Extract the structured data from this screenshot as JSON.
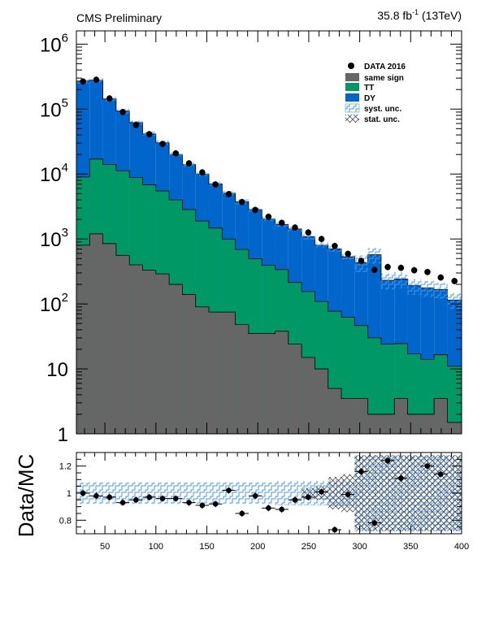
{
  "header": {
    "left": "CMS Preliminary",
    "lumi_value": "35.8 fb",
    "lumi_sup": "-1",
    "lumi_energy": " (13TeV)"
  },
  "colors": {
    "same_sign": "#666666",
    "tt": "#009966",
    "dy": "#0066cc",
    "syst": "#66aaff",
    "stat": "#404040",
    "data": "#000000"
  },
  "chart_data": [
    {
      "type": "bar",
      "stacked": true,
      "ylog": true,
      "ylim": [
        1,
        1600000
      ],
      "xlim": [
        22,
        400
      ],
      "y_ticklabels": [
        {
          "v": 1,
          "m": "1",
          "e": ""
        },
        {
          "v": 10,
          "m": "10",
          "e": ""
        },
        {
          "v": 100,
          "m": "10",
          "e": "2"
        },
        {
          "v": 1000,
          "m": "10",
          "e": "3"
        },
        {
          "v": 10000,
          "m": "10",
          "e": "4"
        },
        {
          "v": 100000,
          "m": "10",
          "e": "5"
        },
        {
          "v": 1000000,
          "m": "10",
          "e": "6"
        }
      ],
      "bin_edges": [
        22,
        35,
        48,
        61,
        74,
        87,
        100,
        113,
        126,
        139,
        152,
        165,
        178,
        191,
        204,
        217,
        230,
        243,
        256,
        269,
        282,
        295,
        308,
        321,
        334,
        347,
        360,
        373,
        386,
        400
      ],
      "series": [
        {
          "name": "same sign",
          "key": "same_sign",
          "values": [
            800,
            1200,
            850,
            560,
            400,
            330,
            290,
            200,
            140,
            90,
            75,
            75,
            48,
            35,
            35,
            38,
            24,
            15,
            10,
            5,
            3.5,
            3.5,
            2,
            2,
            3.5,
            2,
            2,
            3.5,
            1.5
          ]
        },
        {
          "name": "TT",
          "key": "tt",
          "values": [
            8200,
            15800,
            13200,
            10700,
            8400,
            6500,
            5200,
            3800,
            2700,
            1800,
            1400,
            920,
            640,
            460,
            360,
            300,
            190,
            140,
            99,
            72,
            59,
            43,
            28,
            22,
            21,
            15,
            12,
            13,
            9.5
          ]
        },
        {
          "name": "DY",
          "key": "dy",
          "values": [
            261000,
            262000,
            129000,
            82000,
            53000,
            34500,
            24800,
            16000,
            11100,
            8100,
            5600,
            4100,
            3060,
            2340,
            1640,
            1330,
            1210,
            930,
            696,
            628,
            470,
            387,
            542,
            207,
            218,
            174,
            163,
            150,
            104
          ]
        }
      ],
      "data": {
        "name": "DATA 2016",
        "x": [
          28.5,
          41.5,
          54.5,
          67.5,
          80.5,
          93.5,
          106.5,
          119.5,
          132.5,
          145.5,
          158.5,
          171.5,
          184.5,
          197.5,
          210.5,
          223.5,
          236.5,
          249.5,
          262.5,
          275.5,
          288.5,
          301.5,
          314.5,
          327.5,
          340.5,
          353.5,
          366.5,
          379.5,
          393
        ],
        "y": [
          266000,
          283000,
          146000,
          90000,
          57000,
          41000,
          29000,
          20800,
          14600,
          10600,
          6900,
          4900,
          3700,
          2800,
          2200,
          1770,
          1500,
          1260,
          1000,
          780,
          590,
          460,
          335,
          370,
          360,
          330,
          310,
          255,
          225
        ]
      },
      "legend": [
        {
          "label": "DATA 2016",
          "kind": "marker"
        },
        {
          "label": "same sign",
          "kind": "fill",
          "key": "same_sign"
        },
        {
          "label": "TT",
          "kind": "fill",
          "key": "tt"
        },
        {
          "label": "DY",
          "kind": "fill",
          "key": "dy"
        },
        {
          "label": "syst. unc.",
          "kind": "syst"
        },
        {
          "label": "stat. unc.",
          "kind": "stat"
        }
      ],
      "legend_position": "top-right"
    },
    {
      "type": "scatter",
      "ylabel": "Data/MC",
      "ylim": [
        0.7,
        1.3
      ],
      "xlim": [
        22,
        400
      ],
      "y_ticks": [
        0.8,
        1,
        1.2
      ],
      "y_ticklabels": [
        "0.8",
        "1",
        "1.2"
      ],
      "x_ticks": [
        50,
        100,
        150,
        200,
        250,
        300,
        350,
        400
      ],
      "x_ticklabels": [
        "50",
        "100",
        "150",
        "200",
        "250",
        "300",
        "350",
        "400"
      ],
      "ratio": {
        "x": [
          28.5,
          41.5,
          54.5,
          67.5,
          80.5,
          93.5,
          106.5,
          119.5,
          132.5,
          145.5,
          158.5,
          171.5,
          184.5,
          197.5,
          210.5,
          223.5,
          236.5,
          249.5,
          262.5,
          275.5,
          288.5,
          301.5,
          314.5,
          327.5,
          340.5,
          353.5,
          366.5,
          379.5,
          393
        ],
        "y": [
          1.0,
          0.98,
          0.97,
          0.93,
          0.95,
          0.97,
          0.96,
          0.96,
          0.93,
          0.91,
          0.92,
          1.02,
          0.85,
          0.98,
          0.89,
          0.88,
          0.95,
          0.97,
          1.01,
          0.73,
          0.99,
          1.16,
          0.78,
          1.24,
          1.11,
          1.3,
          1.2,
          1.14,
          1.3
        ]
      },
      "syst_band_halfwidth": [
        0.08,
        0.08,
        0.08,
        0.08,
        0.08,
        0.08,
        0.08,
        0.08,
        0.08,
        0.08,
        0.08,
        0.08,
        0.08,
        0.08,
        0.08,
        0.09,
        0.09,
        0.09,
        0.09,
        0.1,
        0.1,
        0.28,
        0.28,
        0.28,
        0.28,
        0.28,
        0.28,
        0.28,
        0.28
      ],
      "stat_band_halfwidth": [
        0.005,
        0.005,
        0.005,
        0.005,
        0.005,
        0.006,
        0.006,
        0.007,
        0.008,
        0.01,
        0.012,
        0.014,
        0.016,
        0.02,
        0.022,
        0.025,
        0.03,
        0.04,
        0.05,
        0.12,
        0.14,
        0.28,
        0.28,
        0.28,
        0.28,
        0.28,
        0.28,
        0.28,
        0.28
      ]
    }
  ]
}
